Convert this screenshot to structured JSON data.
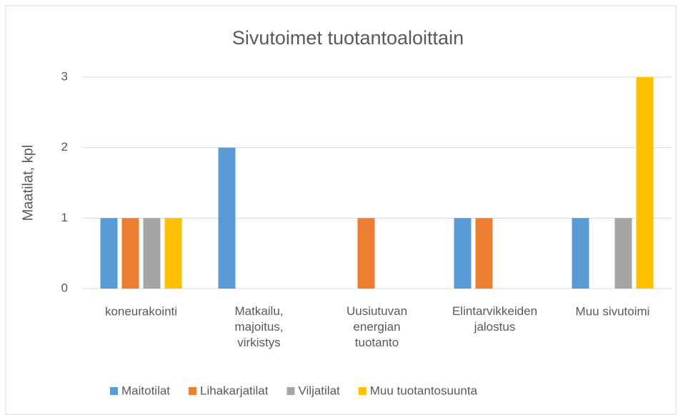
{
  "chart_data": {
    "type": "bar",
    "title": "Sivutoimet tuotantoaloittain",
    "y_label": "Maatilat, kpl",
    "categories": [
      "koneurakointi",
      "Matkailu, majoitus, virkistys",
      "Uusiutuvan energian tuotanto",
      "Elintarvikkeiden jalostus",
      "Muu sivutoimi"
    ],
    "series": [
      {
        "name": "Maitotilat",
        "color": "#5b9bd5",
        "values": [
          1,
          2,
          0,
          1,
          1
        ]
      },
      {
        "name": "Lihakarjatilat",
        "color": "#ed7d31",
        "values": [
          1,
          0,
          1,
          1,
          0
        ]
      },
      {
        "name": "Viljatilat",
        "color": "#a5a5a5",
        "values": [
          1,
          0,
          0,
          0,
          1
        ]
      },
      {
        "name": "Muu tuotantosuunta",
        "color": "#ffc000",
        "values": [
          1,
          0,
          0,
          0,
          3
        ]
      }
    ],
    "ylim": [
      0,
      3
    ],
    "yticks": [
      0,
      1,
      2,
      3
    ],
    "grid": true,
    "legend": "bottom"
  }
}
